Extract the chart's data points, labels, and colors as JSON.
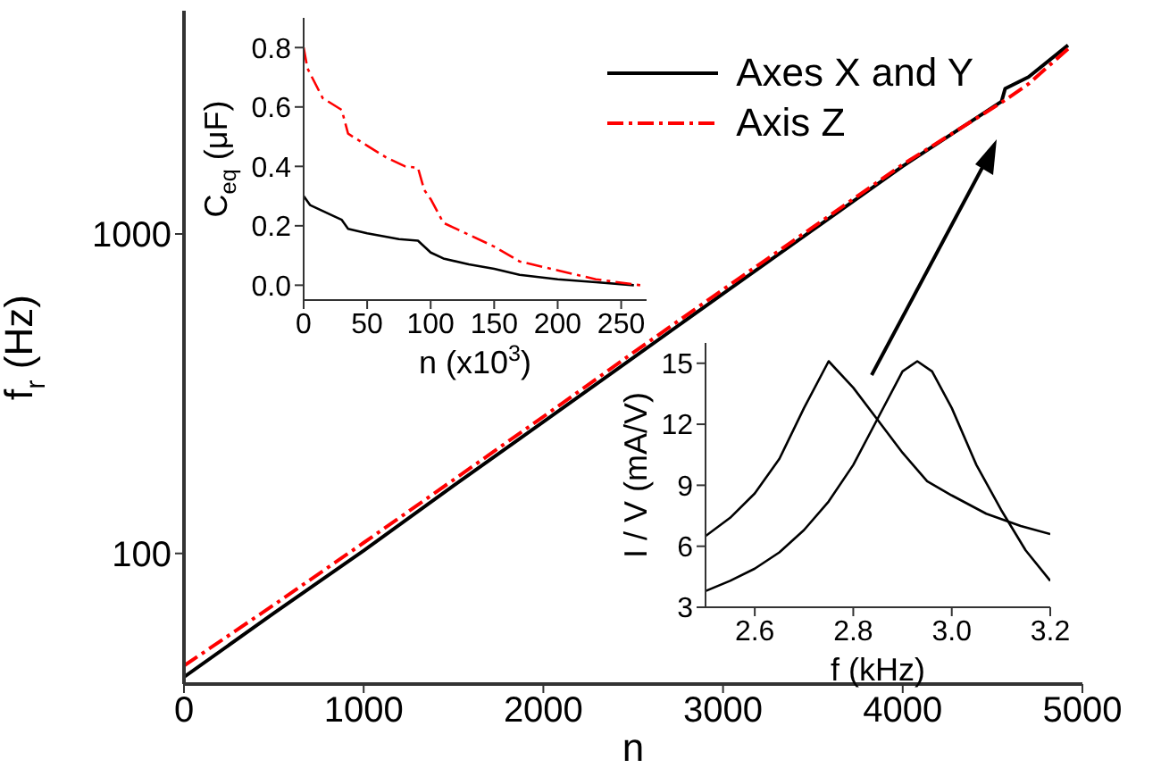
{
  "chart_data": [
    {
      "type": "line",
      "xlabel": "n",
      "ylabel": "f$_{r}$ (Hz)",
      "xlim": [
        0,
        5000
      ],
      "xticks": [
        0,
        1000,
        2000,
        3000,
        4000,
        5000
      ],
      "ylim": [
        39,
        5000
      ],
      "yticks": [
        100,
        1000
      ],
      "log": "y",
      "legend": "top right",
      "marker": "none",
      "series": [
        {
          "name": "Axes X and Y",
          "color": "#000000",
          "line_style": "solid",
          "x": [
            0,
            500,
            1000,
            1500,
            2000,
            2500,
            3000,
            3500,
            4000,
            4550,
            4570,
            4700,
            4920
          ],
          "values": [
            41,
            65,
            102,
            163,
            258,
            410,
            650,
            1030,
            1630,
            2600,
            2850,
            3100,
            3900
          ]
        },
        {
          "name": "Axis Z",
          "color": "#ff0000",
          "line_style": "dashed",
          "x": [
            0,
            500,
            1000,
            1500,
            2000,
            2500,
            3000,
            3500,
            4000,
            4550,
            4700,
            4920
          ],
          "values": [
            44.5,
            69,
            108,
            170,
            268,
            425,
            670,
            1050,
            1650,
            2580,
            2950,
            3800
          ]
        }
      ]
    },
    {
      "type": "line",
      "xlabel": "n (x10$^{3}$)",
      "ylabel": "C$_{eq}$ (μF)",
      "xlim": [
        0,
        270
      ],
      "xticks": [
        0,
        50,
        100,
        150,
        200,
        250
      ],
      "ylim": [
        -0.05,
        0.9
      ],
      "yticks": [
        {
          "value": 0,
          "label": "0.0"
        },
        0.2,
        0.4,
        0.6,
        0.8
      ],
      "marker": "none",
      "series": [
        {
          "color": "#000000",
          "line_style": "solid",
          "x": [
            0,
            5,
            25,
            30,
            35,
            50,
            75,
            90,
            100,
            110,
            130,
            150,
            170,
            200,
            230,
            260
          ],
          "values": [
            0.3,
            0.27,
            0.23,
            0.22,
            0.19,
            0.175,
            0.155,
            0.15,
            0.11,
            0.09,
            0.07,
            0.055,
            0.035,
            0.02,
            0.01,
            0.0
          ]
        },
        {
          "color": "#ff0000",
          "line_style": "dashed",
          "x": [
            0,
            3,
            15,
            30,
            35,
            50,
            65,
            80,
            90,
            95,
            100,
            110,
            130,
            150,
            170,
            200,
            230,
            265
          ],
          "values": [
            0.8,
            0.73,
            0.63,
            0.59,
            0.51,
            0.47,
            0.43,
            0.4,
            0.395,
            0.32,
            0.29,
            0.21,
            0.17,
            0.13,
            0.08,
            0.05,
            0.02,
            0.0
          ]
        }
      ]
    },
    {
      "type": "line",
      "xlabel": "f (kHz)",
      "ylabel": "I / V (mA/V)",
      "xlim": [
        2.5,
        3.2
      ],
      "xticks": [
        2.6,
        2.8,
        {
          "value": 3,
          "label": "3.0"
        },
        3.2
      ],
      "ylim": [
        3,
        16
      ],
      "yticks": [
        3,
        6,
        9,
        12,
        15
      ],
      "marker": "none",
      "series": [
        {
          "color": "#000000",
          "line_style": "solid",
          "x": [
            2.5,
            2.55,
            2.6,
            2.65,
            2.7,
            2.75,
            2.8,
            2.85,
            2.9,
            2.95,
            3.0,
            3.07,
            3.14,
            3.2
          ],
          "values": [
            6.5,
            7.4,
            8.6,
            10.3,
            12.8,
            15.1,
            13.8,
            12.2,
            10.6,
            9.2,
            8.5,
            7.6,
            7.0,
            6.6
          ]
        },
        {
          "color": "#000000",
          "line_style": "solid",
          "x": [
            2.5,
            2.55,
            2.6,
            2.65,
            2.7,
            2.75,
            2.8,
            2.85,
            2.9,
            2.93,
            2.96,
            3.0,
            3.05,
            3.1,
            3.15,
            3.2
          ],
          "values": [
            3.8,
            4.3,
            4.9,
            5.7,
            6.8,
            8.2,
            10.0,
            12.3,
            14.6,
            15.1,
            14.6,
            12.8,
            10.0,
            7.8,
            5.8,
            4.3
          ]
        }
      ]
    }
  ]
}
